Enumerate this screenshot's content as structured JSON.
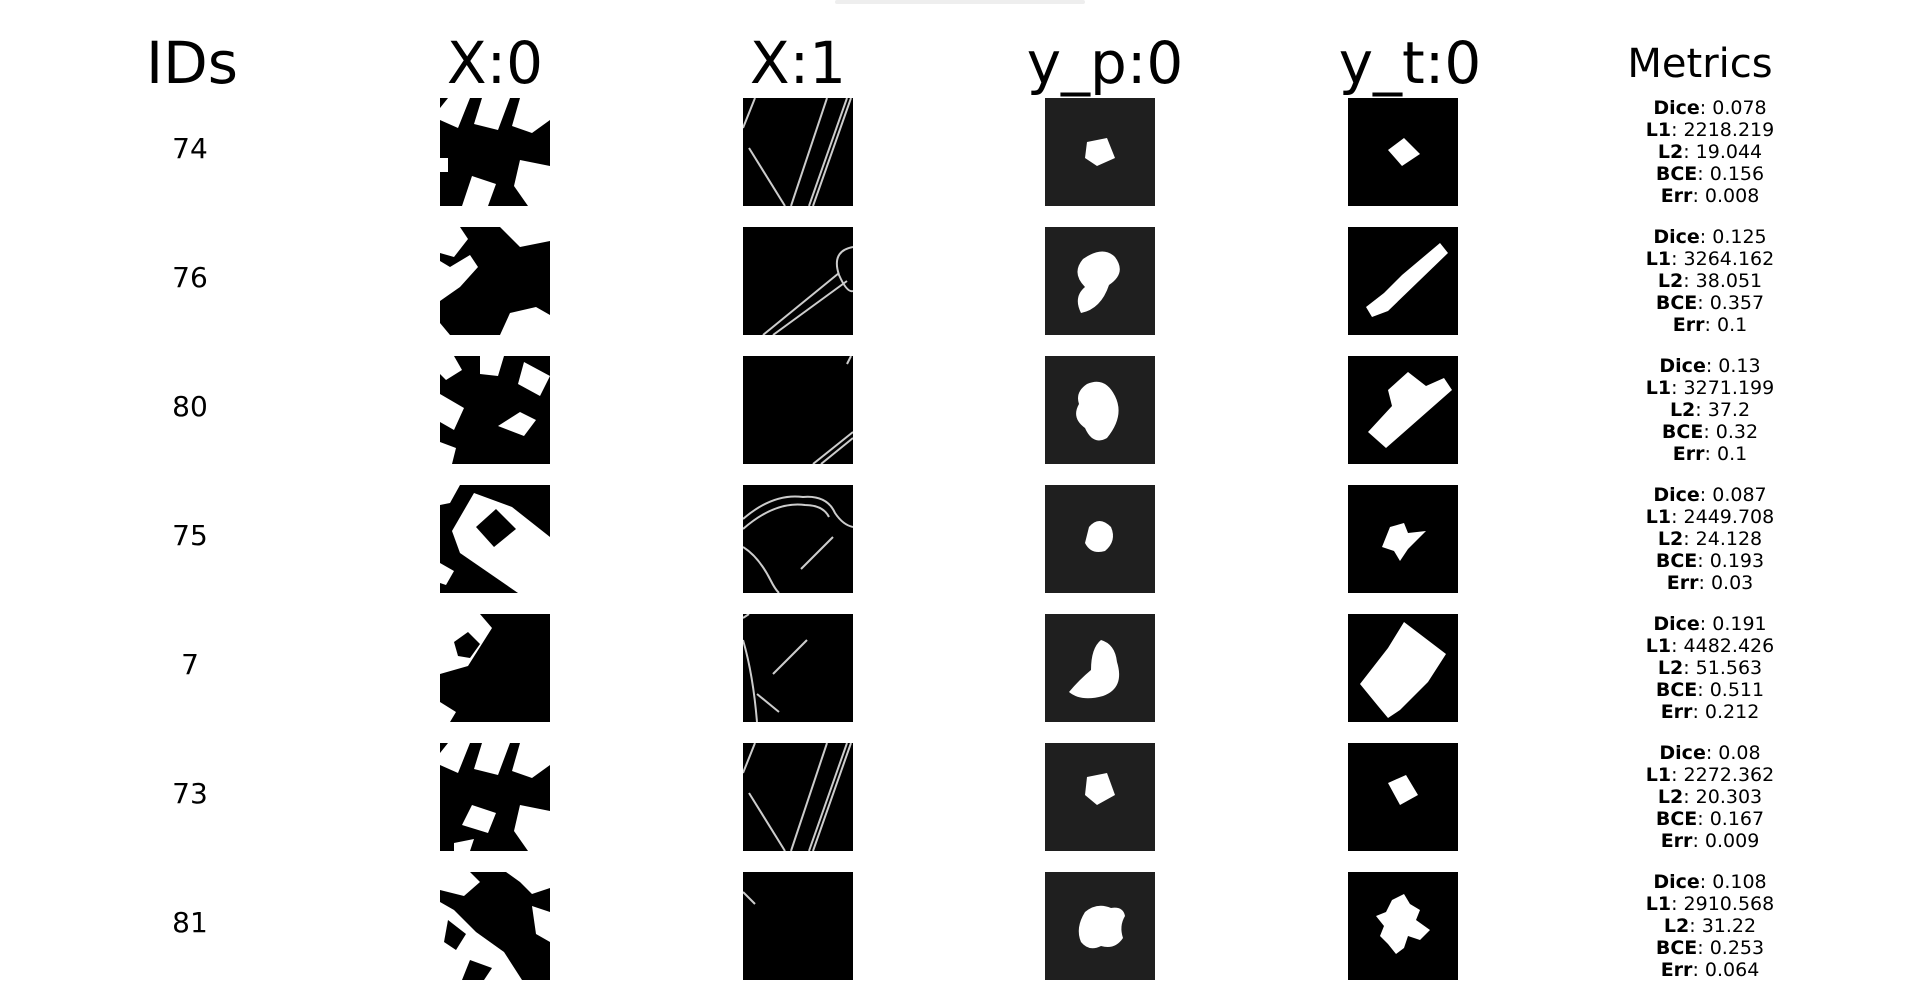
{
  "headers": {
    "ids": "IDs",
    "x0": "X:0",
    "x1": "X:1",
    "yp": "y_p:0",
    "yt": "y_t:0",
    "metrics": "Metrics"
  },
  "metric_labels": {
    "dice": "Dice",
    "l1": "L1",
    "l2": "L2",
    "bce": "BCE",
    "err": "Err"
  },
  "rows": [
    {
      "id": "74",
      "dice": "0.078",
      "l1": "2218.219",
      "l2": "19.044",
      "bce": "0.156",
      "err": "0.008"
    },
    {
      "id": "76",
      "dice": "0.125",
      "l1": "3264.162",
      "l2": "38.051",
      "bce": "0.357",
      "err": "0.1"
    },
    {
      "id": "80",
      "dice": "0.13",
      "l1": "3271.199",
      "l2": "37.2",
      "bce": "0.32",
      "err": "0.1"
    },
    {
      "id": "75",
      "dice": "0.087",
      "l1": "2449.708",
      "l2": "24.128",
      "bce": "0.193",
      "err": "0.03"
    },
    {
      "id": "7",
      "dice": "0.191",
      "l1": "4482.426",
      "l2": "51.563",
      "bce": "0.511",
      "err": "0.212"
    },
    {
      "id": "73",
      "dice": "0.08",
      "l1": "2272.362",
      "l2": "20.303",
      "bce": "0.167",
      "err": "0.009"
    },
    {
      "id": "81",
      "dice": "0.108",
      "l1": "2910.568",
      "l2": "31.22",
      "bce": "0.253",
      "err": "0.064"
    }
  ]
}
